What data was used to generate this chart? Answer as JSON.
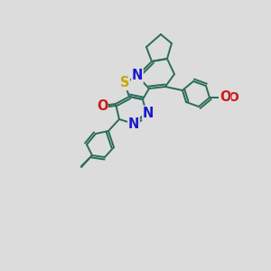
{
  "bg_color": "#dcdcdc",
  "bond_color": "#2a6b5a",
  "bond_width": 1.4,
  "atom_S": {
    "text": "S",
    "color": "#c8a800",
    "fontsize": 10.5
  },
  "atom_N": {
    "text": "N",
    "color": "#1a1acc",
    "fontsize": 10.5
  },
  "atom_O": {
    "text": "O",
    "color": "#cc1a1a",
    "fontsize": 10.5
  },
  "scale": 1.0
}
